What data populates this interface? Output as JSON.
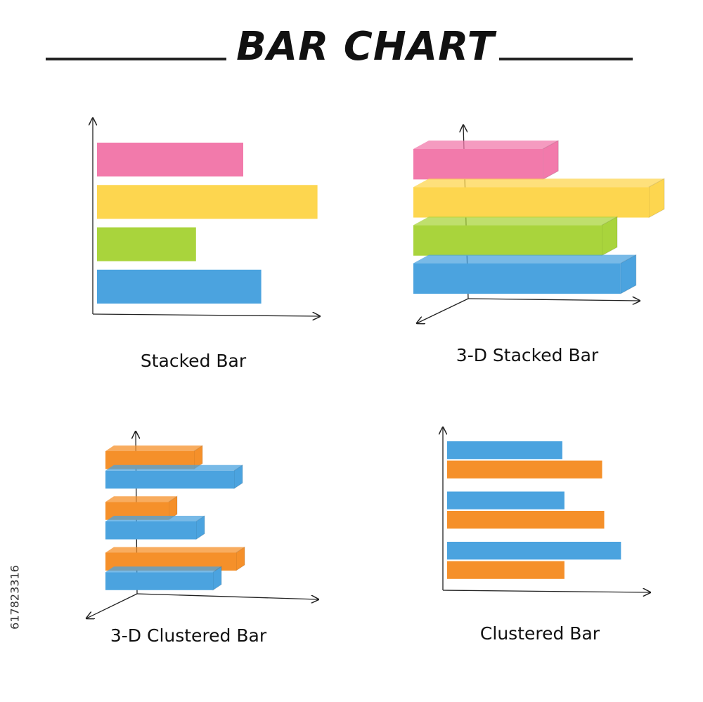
{
  "title": "BAR CHART",
  "side_text": "617823316",
  "chart_data": [
    {
      "type": "bar",
      "title": "Stacked Bar",
      "values": [
        65,
        98,
        44,
        73
      ],
      "colors": [
        "#f27aab",
        "#fdd64f",
        "#a9d43c",
        "#4ba3df"
      ],
      "xlim": [
        0,
        100
      ]
    },
    {
      "type": "bar3d",
      "title": "3-D Stacked Bar",
      "values": [
        55,
        100,
        80,
        88
      ],
      "colors": [
        "#f27aab",
        "#fdd64f",
        "#a9d43c",
        "#4ba3df"
      ],
      "xlim": [
        0,
        100
      ]
    },
    {
      "type": "bar3d",
      "title": "3-D Clustered  Bar",
      "series": [
        {
          "color": "#f5902a",
          "values": [
            42,
            30,
            62
          ]
        },
        {
          "color": "#4ba3df",
          "values": [
            61,
            43,
            51
          ]
        }
      ],
      "xlim": [
        0,
        100
      ]
    },
    {
      "type": "bar",
      "title": "Clustered Bar",
      "series": [
        {
          "color": "#4ba3df",
          "values": [
            55,
            56,
            83
          ]
        },
        {
          "color": "#f5902a",
          "values": [
            74,
            75,
            56
          ]
        }
      ],
      "xlim": [
        0,
        100
      ]
    }
  ]
}
